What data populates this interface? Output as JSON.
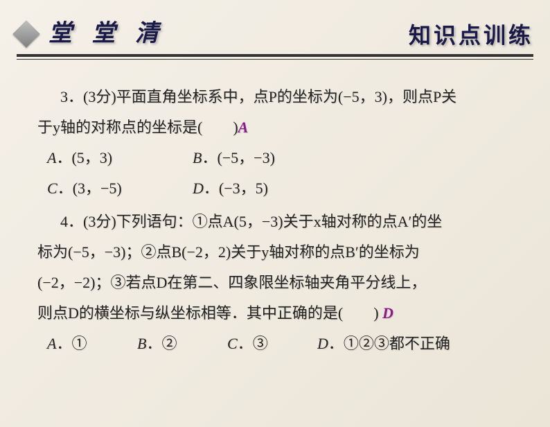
{
  "header": {
    "title_left": "堂 堂 清",
    "title_right": "知识点训练"
  },
  "colors": {
    "answer": "#8b1a8b",
    "text": "#222222",
    "title": "#1a1a4a",
    "line": "#333333",
    "bg_start": "#f5f0e8",
    "bg_end": "#ebe5d8"
  },
  "fonts": {
    "body_size_pt": 16,
    "title_size_pt": 25,
    "line_height": 2.0
  },
  "q3": {
    "line1": "3．(3分)平面直角坐标系中，点P的坐标为(−5，3)，则点P关",
    "line2_pre": "于y轴的对称点的坐标是(　　)",
    "answer": "A",
    "opts": {
      "a": "A．(5，3)",
      "b": "B．(−5，−3)",
      "c": "C．(3，−5)",
      "d": "D．(−3，5)"
    }
  },
  "q4": {
    "line1": "4．(3分)下列语句：①点A(5，−3)关于x轴对称的点A′的坐",
    "line2": "标为(−5，−3)；②点B(−2，2)关于y轴对称的点B′的坐标为",
    "line3": "(−2，−2)；③若点D在第二、四象限坐标轴夹角平分线上，",
    "line4_pre": "则点D的横坐标与纵坐标相等．其中正确的是(　　)",
    "answer": "D",
    "opts": {
      "a": "A．①",
      "b": "B．②",
      "c": "C．③",
      "d": "D．①②③都不正确"
    }
  }
}
